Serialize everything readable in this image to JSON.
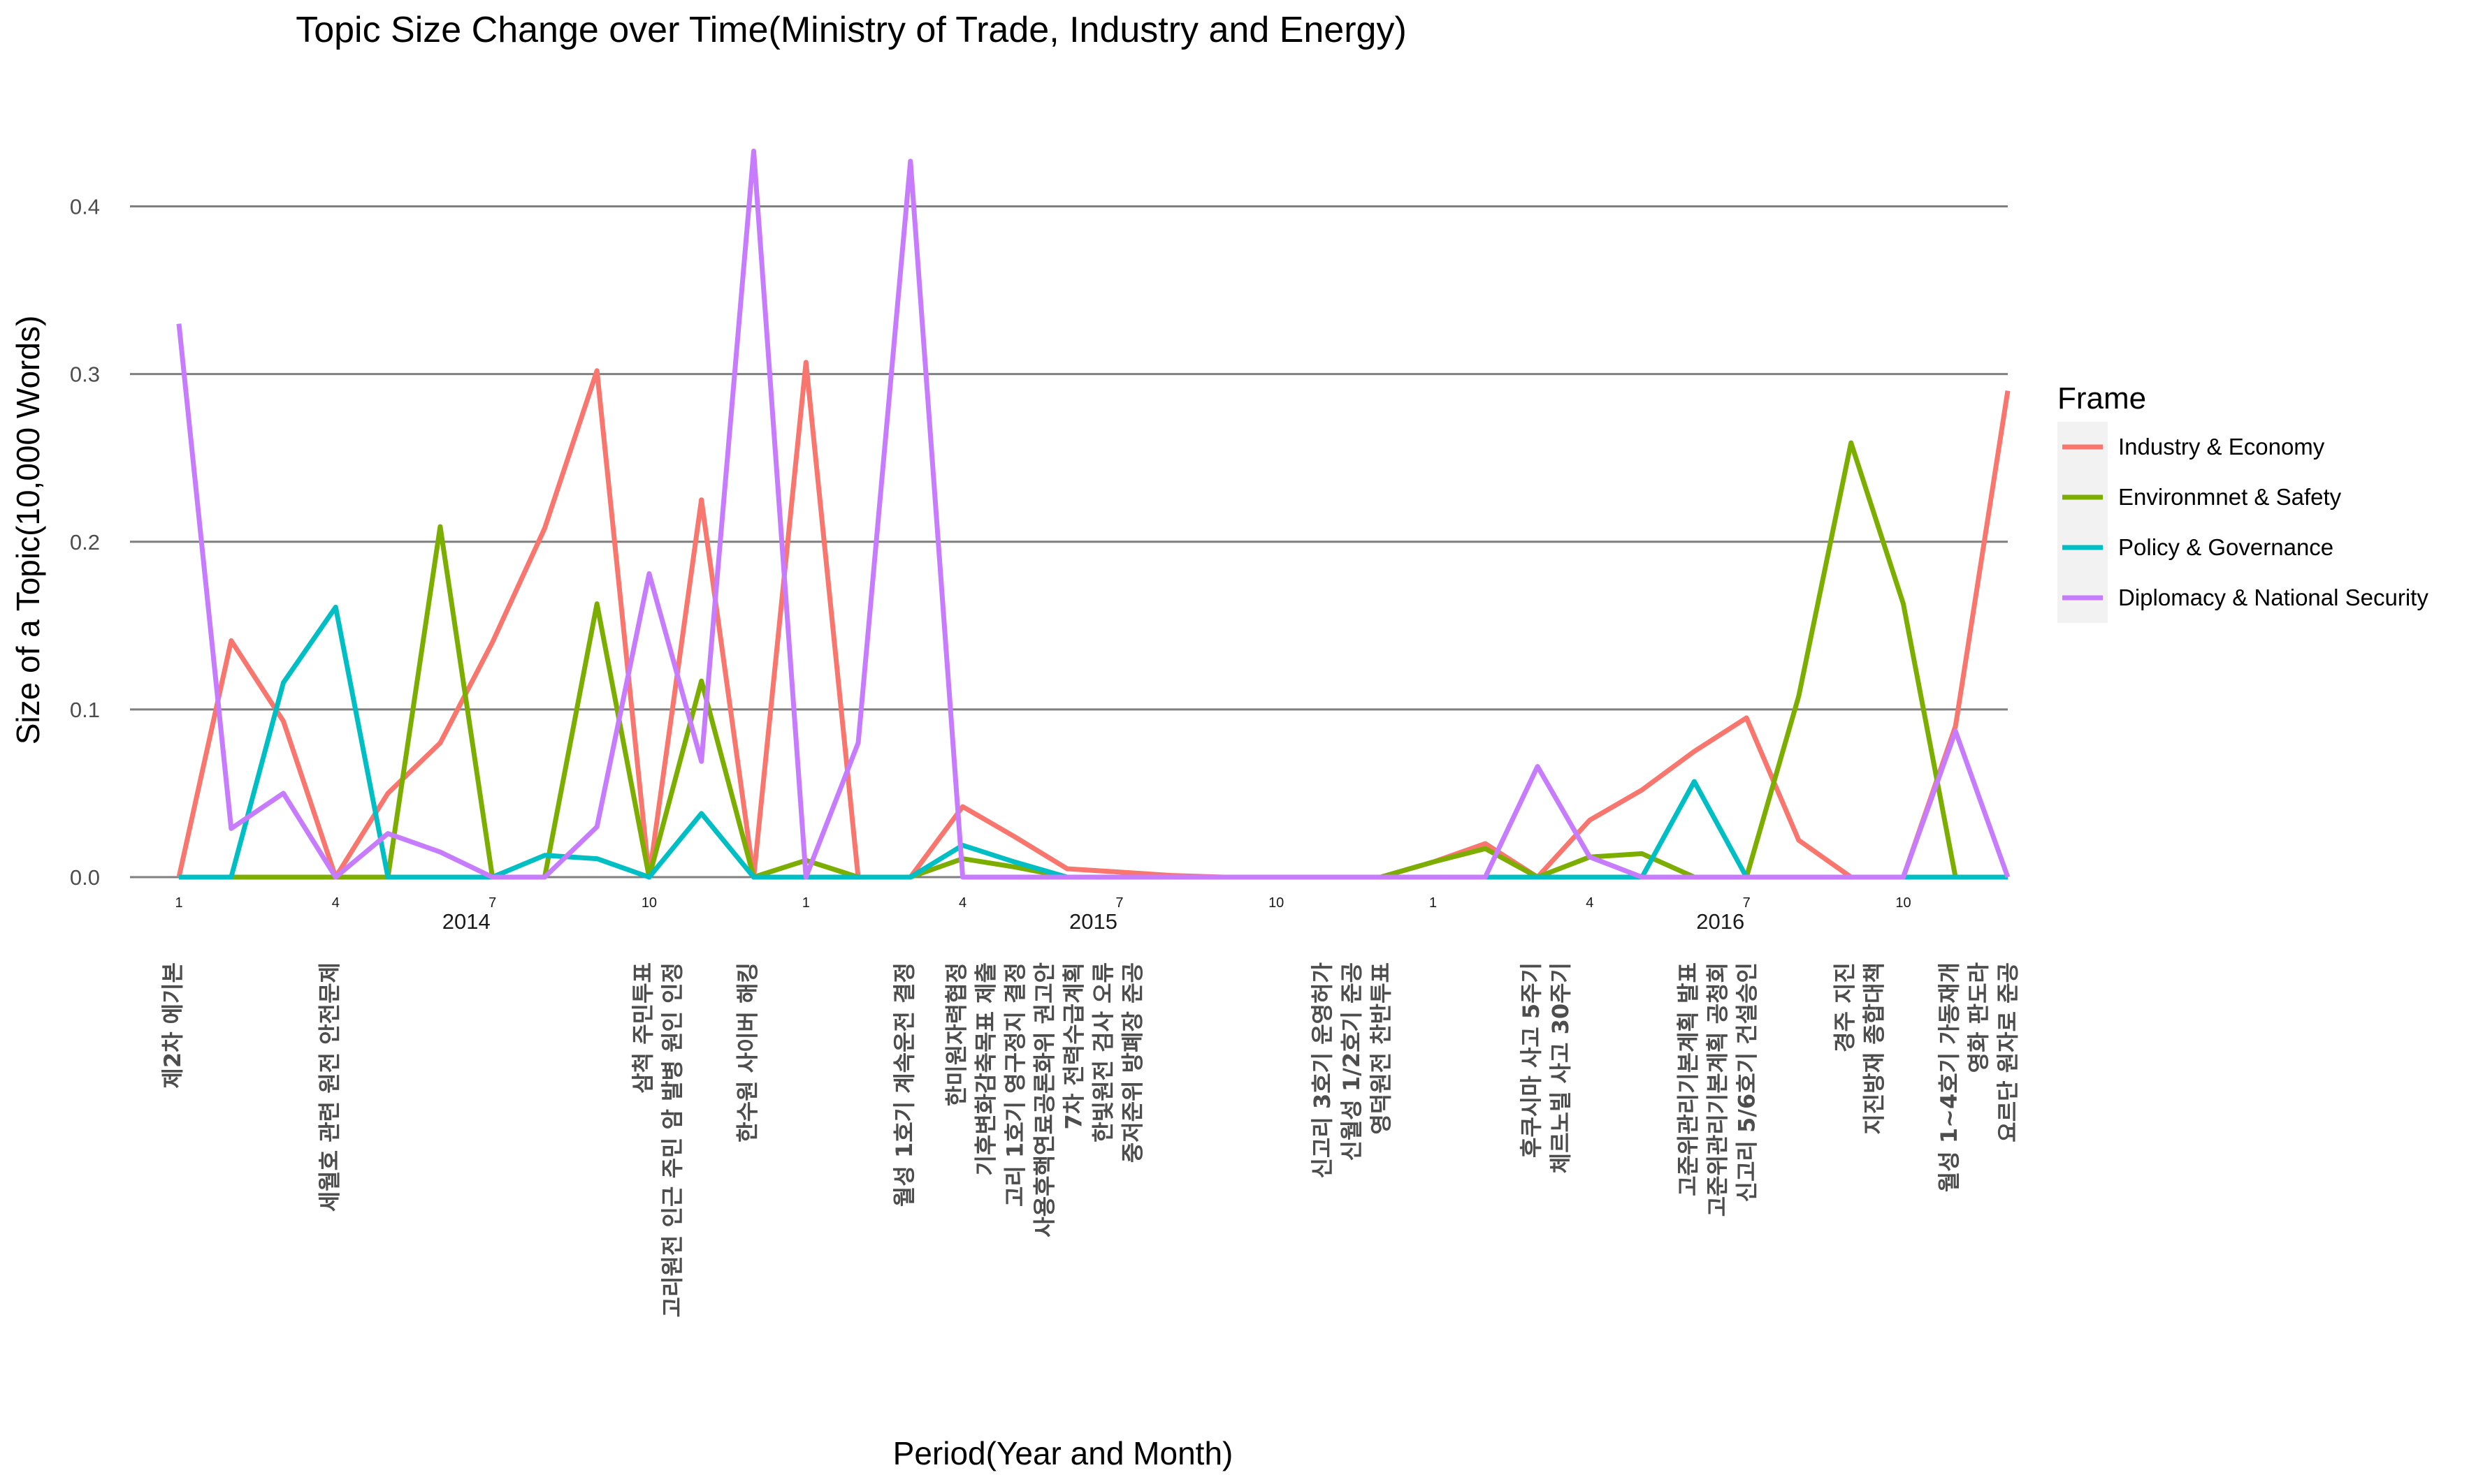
{
  "chart_data": {
    "type": "line",
    "title": "Topic Size Change over Time(Ministry of Trade, Industry and Energy)",
    "xlabel": "Period(Year and Month)",
    "ylabel": "Size of a Topic(10,000 Words)",
    "ylim": [
      0,
      0.44
    ],
    "yticks": [
      0.0,
      0.1,
      0.2,
      0.3,
      0.4
    ],
    "ytick_labels": [
      "0.0",
      "0.1",
      "0.2",
      "0.3",
      "0.4"
    ],
    "grid": "horizontal major gridlines",
    "legend_title": "Frame",
    "legend_position": "right",
    "x_start": "2014-01",
    "x_end": "2016-12",
    "x_month_ticks": [
      {
        "month": 1,
        "label": "1"
      },
      {
        "month": 4,
        "label": "4"
      },
      {
        "month": 7,
        "label": "7"
      },
      {
        "month": 10,
        "label": "10"
      },
      {
        "month": 13,
        "label": "1"
      },
      {
        "month": 16,
        "label": "4"
      },
      {
        "month": 19,
        "label": "7"
      },
      {
        "month": 22,
        "label": "10"
      },
      {
        "month": 25,
        "label": "1"
      },
      {
        "month": 28,
        "label": "4"
      },
      {
        "month": 31,
        "label": "7"
      },
      {
        "month": 34,
        "label": "10"
      }
    ],
    "x_year_labels": [
      {
        "month": 6.5,
        "label": "2014"
      },
      {
        "month": 18.5,
        "label": "2015"
      },
      {
        "month": 30.5,
        "label": "2016"
      }
    ],
    "x": [
      "2014-01",
      "2014-02",
      "2014-03",
      "2014-04",
      "2014-05",
      "2014-06",
      "2014-07",
      "2014-08",
      "2014-09",
      "2014-10",
      "2014-11",
      "2014-12",
      "2015-01",
      "2015-02",
      "2015-03",
      "2015-04",
      "2015-05",
      "2015-06",
      "2015-07",
      "2015-08",
      "2015-09",
      "2015-10",
      "2015-11",
      "2015-12",
      "2016-01",
      "2016-02",
      "2016-03",
      "2016-04",
      "2016-05",
      "2016-06",
      "2016-07",
      "2016-08",
      "2016-09",
      "2016-10",
      "2016-11",
      "2016-12"
    ],
    "series": [
      {
        "name": "Industry & Economy",
        "color": "#F8766D",
        "values": [
          0.0,
          0.141,
          0.093,
          0.0,
          0.05,
          0.08,
          0.14,
          0.208,
          0.302,
          0.0,
          0.225,
          0.0,
          0.307,
          0.0,
          0.0,
          0.042,
          0.024,
          0.005,
          0.003,
          0.001,
          0.0,
          0.0,
          0.0,
          0.0,
          0.009,
          0.02,
          0.0,
          0.034,
          0.052,
          0.075,
          0.095,
          0.022,
          0.0,
          0.0,
          0.09,
          0.29
        ]
      },
      {
        "name": "Environmnet & Safety",
        "color": "#7CAE00",
        "values": [
          0.0,
          0.0,
          0.0,
          0.0,
          0.0,
          0.209,
          0.0,
          0.0,
          0.163,
          0.0,
          0.117,
          0.0,
          0.01,
          0.0,
          0.0,
          0.011,
          0.006,
          0.0,
          0.0,
          0.0,
          0.0,
          0.0,
          0.0,
          0.0,
          0.009,
          0.017,
          0.0,
          0.012,
          0.014,
          0.0,
          0.0,
          0.108,
          0.259,
          0.163,
          0.0,
          0.0
        ]
      },
      {
        "name": "Policy & Governance",
        "color": "#00BFC4",
        "values": [
          0.0,
          0.0,
          0.116,
          0.161,
          0.0,
          0.0,
          0.0,
          0.013,
          0.011,
          0.0,
          0.038,
          0.0,
          0.0,
          0.0,
          0.0,
          0.019,
          0.009,
          0.0,
          0.0,
          0.0,
          0.0,
          0.0,
          0.0,
          0.0,
          0.0,
          0.0,
          0.0,
          0.0,
          0.0,
          0.057,
          0.0,
          0.0,
          0.0,
          0.0,
          0.0,
          0.0
        ]
      },
      {
        "name": "Diplomacy & National Security",
        "color": "#C77CFF",
        "values": [
          0.33,
          0.029,
          0.05,
          0.0,
          0.026,
          0.015,
          0.0,
          0.0,
          0.03,
          0.181,
          0.069,
          0.433,
          0.0,
          0.08,
          0.427,
          0.0,
          0.0,
          0.0,
          0.0,
          0.0,
          0.0,
          0.0,
          0.0,
          0.0,
          0.0,
          0.0,
          0.066,
          0.012,
          0.0,
          0.0,
          0.0,
          0.0,
          0.0,
          0.0,
          0.087,
          0.0
        ]
      }
    ],
    "event_annotations": [
      {
        "month": 1,
        "lines": [
          "제2차 에기본"
        ]
      },
      {
        "month": 4,
        "lines": [
          "세월호 관련 원전 안전문제"
        ]
      },
      {
        "month": 10,
        "lines": [
          "삼척 주민투표",
          "고리원전 인근 주민 암 발병 원인 인정"
        ]
      },
      {
        "month": 12,
        "lines": [
          "한수원 사이버 해킹"
        ]
      },
      {
        "month": 15,
        "lines": [
          "월성 1호기 계속운전 결정"
        ]
      },
      {
        "month": 16,
        "lines": [
          "한미원자력협정",
          "기후변화감축목표 제출",
          "고리 1호기 영구정지 결정",
          "사용후핵연료공론화위 권고안",
          "7차 전력수급계획",
          "한빛원전 검사 오류",
          "중저준위 방폐장 준공"
        ]
      },
      {
        "month": 23,
        "lines": [
          "신고리 3호기 운영허가",
          "신월성 1/2호기 준공",
          "영덕원전 찬반투표"
        ]
      },
      {
        "month": 27,
        "lines": [
          "후쿠시마 사고 5주기",
          "체르노빌 사고 30주기"
        ]
      },
      {
        "month": 30,
        "lines": [
          "고준위관리기본계획 발표",
          "고준위관리기본계획 공청회",
          "신고리 5/6호기 건설승인"
        ]
      },
      {
        "month": 33,
        "lines": [
          "경주 지진",
          "지진방재 종합대책"
        ]
      },
      {
        "month": 35,
        "lines": [
          "월성 1~4호기 가동재개",
          "영화 판도라",
          "요르단 원자로 준공"
        ]
      }
    ]
  }
}
